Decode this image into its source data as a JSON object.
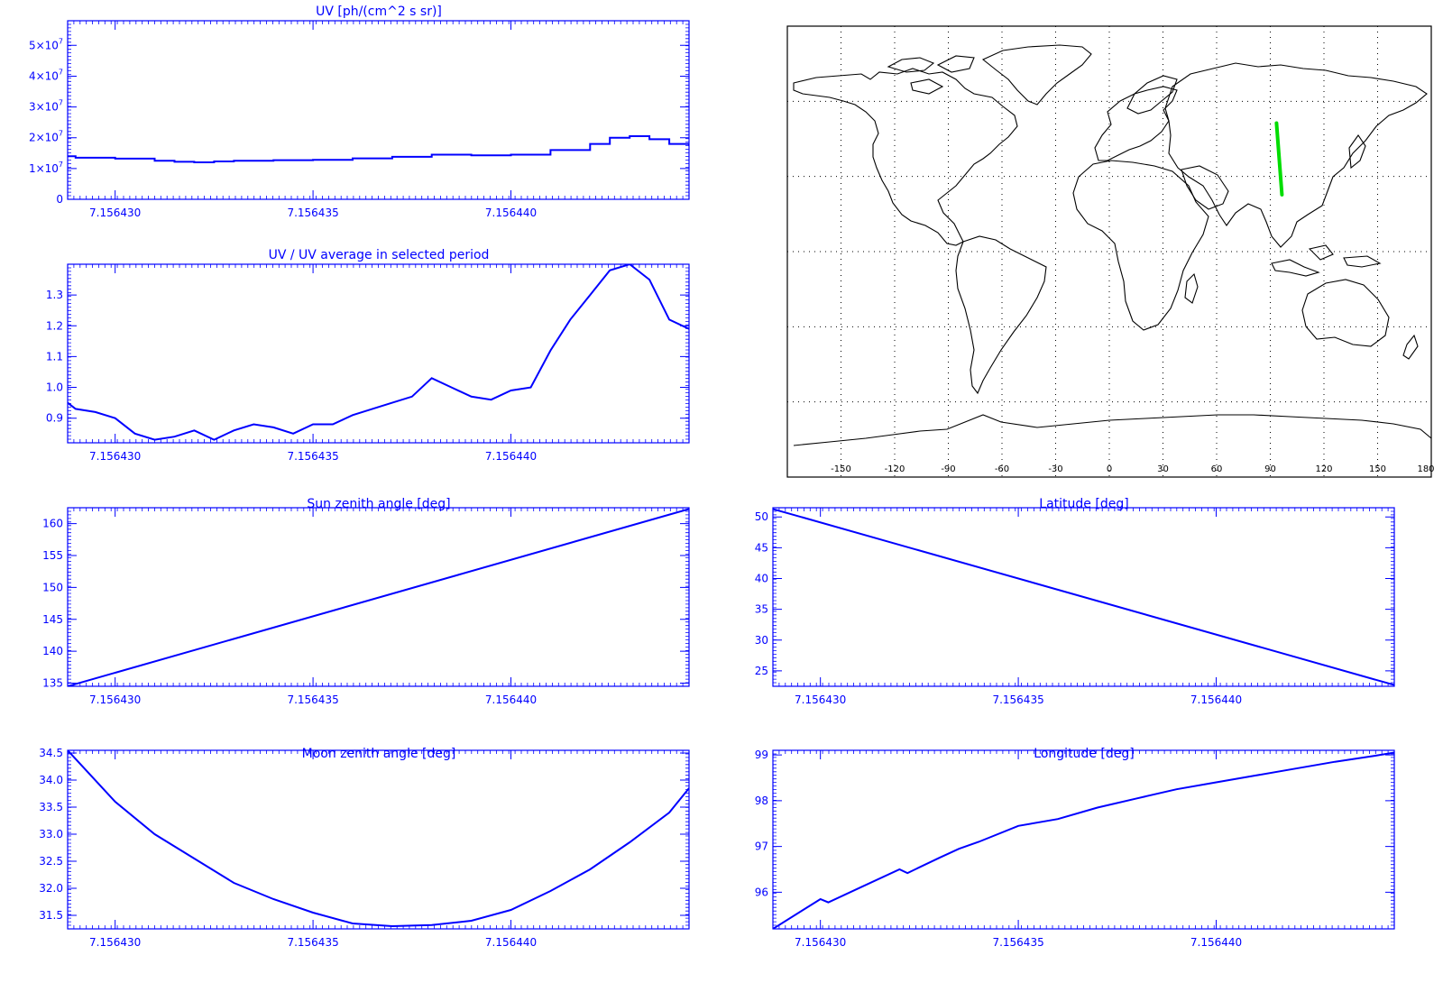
{
  "colors": {
    "axis": "#0000ff",
    "line": "#0000ff",
    "track": "#00dd00",
    "map": "#000000",
    "grid": "#000000"
  },
  "chart_data": [
    {
      "id": "uv",
      "type": "line",
      "line_style": "step",
      "title": "UV [ph/(cm^2 s sr)]",
      "xlabel": "",
      "ylabel": "",
      "xlim": [
        7.1564288,
        7.1564445
      ],
      "ylim": [
        0,
        58000000
      ],
      "xticks": [
        7.15643,
        7.156435,
        7.15644
      ],
      "xtick_labels": [
        "7.156430",
        "7.156435",
        "7.156440"
      ],
      "yticks": [
        0,
        10000000,
        20000000,
        30000000,
        40000000,
        50000000
      ],
      "ytick_labels": [
        {
          "base": "0",
          "exp": ""
        },
        {
          "base": "1×10",
          "exp": "7"
        },
        {
          "base": "2×10",
          "exp": "7"
        },
        {
          "base": "3×10",
          "exp": "7"
        },
        {
          "base": "4×10",
          "exp": "7"
        },
        {
          "base": "5×10",
          "exp": "7"
        }
      ],
      "series": [
        {
          "x": [
            7.1564288,
            7.156429,
            7.15643,
            7.156431,
            7.1564315,
            7.156432,
            7.1564325,
            7.156433,
            7.156434,
            7.156435,
            7.156436,
            7.156437,
            7.156438,
            7.156439,
            7.15644,
            7.156441,
            7.156442,
            7.1564425,
            7.156443,
            7.1564435,
            7.156444,
            7.1564445
          ],
          "y": [
            14000000,
            13500000,
            13200000,
            12500000,
            12200000,
            12000000,
            12300000,
            12500000,
            12700000,
            12800000,
            13300000,
            13800000,
            14500000,
            14300000,
            14500000,
            16000000,
            18000000,
            20000000,
            20500000,
            19500000,
            18000000,
            17500000
          ]
        }
      ]
    },
    {
      "id": "uv-ratio",
      "type": "line",
      "title": "UV / UV average in selected period",
      "xlabel": "",
      "ylabel": "",
      "xlim": [
        7.1564288,
        7.1564445
      ],
      "ylim": [
        0.82,
        1.4
      ],
      "xticks": [
        7.15643,
        7.156435,
        7.15644
      ],
      "xtick_labels": [
        "7.156430",
        "7.156435",
        "7.156440"
      ],
      "yticks": [
        0.9,
        1.0,
        1.1,
        1.2,
        1.3
      ],
      "ytick_labels": [
        "0.9",
        "1.0",
        "1.1",
        "1.2",
        "1.3"
      ],
      "series": [
        {
          "x": [
            7.1564288,
            7.156429,
            7.1564295,
            7.15643,
            7.1564305,
            7.156431,
            7.1564315,
            7.156432,
            7.1564325,
            7.156433,
            7.1564335,
            7.156434,
            7.1564345,
            7.156435,
            7.1564355,
            7.156436,
            7.1564365,
            7.156437,
            7.1564375,
            7.156438,
            7.1564385,
            7.156439,
            7.1564395,
            7.15644,
            7.1564405,
            7.156441,
            7.1564415,
            7.156442,
            7.1564425,
            7.156443,
            7.1564435,
            7.156444,
            7.1564445
          ],
          "y": [
            0.95,
            0.93,
            0.92,
            0.9,
            0.85,
            0.83,
            0.84,
            0.86,
            0.83,
            0.86,
            0.88,
            0.87,
            0.85,
            0.88,
            0.88,
            0.91,
            0.93,
            0.95,
            0.97,
            1.03,
            1.0,
            0.97,
            0.96,
            0.99,
            1.0,
            1.12,
            1.22,
            1.3,
            1.38,
            1.4,
            1.35,
            1.22,
            1.19
          ]
        }
      ]
    },
    {
      "id": "sun-zenith",
      "type": "line",
      "title": "Sun zenith angle [deg]",
      "xlabel": "",
      "ylabel": "",
      "xlim": [
        7.1564288,
        7.1564445
      ],
      "ylim": [
        134.5,
        162.5
      ],
      "xticks": [
        7.15643,
        7.156435,
        7.15644
      ],
      "xtick_labels": [
        "7.156430",
        "7.156435",
        "7.156440"
      ],
      "yticks": [
        135,
        140,
        145,
        150,
        155,
        160
      ],
      "ytick_labels": [
        "135",
        "140",
        "145",
        "150",
        "155",
        "160"
      ],
      "series": [
        {
          "x": [
            7.1564288,
            7.1564445
          ],
          "y": [
            134.5,
            162.3
          ]
        }
      ]
    },
    {
      "id": "latitude",
      "type": "line",
      "title": "Latitude [deg]",
      "xlabel": "",
      "ylabel": "",
      "xlim": [
        7.1564288,
        7.1564445
      ],
      "ylim": [
        22.5,
        51.5
      ],
      "xticks": [
        7.15643,
        7.156435,
        7.15644
      ],
      "xtick_labels": [
        "7.156430",
        "7.156435",
        "7.156440"
      ],
      "yticks": [
        25,
        30,
        35,
        40,
        45,
        50
      ],
      "ytick_labels": [
        "25",
        "30",
        "35",
        "40",
        "45",
        "50"
      ],
      "series": [
        {
          "x": [
            7.1564288,
            7.1564445
          ],
          "y": [
            51.3,
            22.7
          ]
        }
      ]
    },
    {
      "id": "moon-zenith",
      "type": "line",
      "title": "Moon zenith angle [deg]",
      "xlabel": "",
      "ylabel": "",
      "xlim": [
        7.1564288,
        7.1564445
      ],
      "ylim": [
        31.25,
        34.55
      ],
      "xticks": [
        7.15643,
        7.156435,
        7.15644
      ],
      "xtick_labels": [
        "7.156430",
        "7.156435",
        "7.156440"
      ],
      "yticks": [
        31.5,
        32.0,
        32.5,
        33.0,
        33.5,
        34.0,
        34.5
      ],
      "ytick_labels": [
        "31.5",
        "32.0",
        "32.5",
        "33.0",
        "33.5",
        "34.0",
        "34.5"
      ],
      "series": [
        {
          "x": [
            7.1564288,
            7.15643,
            7.156431,
            7.156432,
            7.156433,
            7.156434,
            7.156435,
            7.156436,
            7.156437,
            7.156438,
            7.156439,
            7.15644,
            7.156441,
            7.156442,
            7.156443,
            7.156444,
            7.1564445
          ],
          "y": [
            34.55,
            33.6,
            33.0,
            32.55,
            32.1,
            31.8,
            31.55,
            31.35,
            31.3,
            31.32,
            31.4,
            31.6,
            31.95,
            32.35,
            32.85,
            33.4,
            33.85
          ]
        }
      ]
    },
    {
      "id": "longitude",
      "type": "line",
      "title": "Longitude [deg]",
      "xlabel": "",
      "ylabel": "",
      "xlim": [
        7.1564288,
        7.1564445
      ],
      "ylim": [
        95.2,
        99.1
      ],
      "xticks": [
        7.15643,
        7.156435,
        7.15644
      ],
      "xtick_labels": [
        "7.156430",
        "7.156435",
        "7.156440"
      ],
      "yticks": [
        96,
        97,
        98,
        99
      ],
      "ytick_labels": [
        "96",
        "97",
        "98",
        "99"
      ],
      "series": [
        {
          "x": [
            7.1564288,
            7.15643,
            7.1564302,
            7.156431,
            7.156432,
            7.1564322,
            7.156433,
            7.1564335,
            7.156434,
            7.156435,
            7.156436,
            7.156437,
            7.156438,
            7.156439,
            7.15644,
            7.156441,
            7.156442,
            7.156443,
            7.156444,
            7.1564445
          ],
          "y": [
            95.2,
            95.85,
            95.78,
            96.1,
            96.5,
            96.42,
            96.75,
            96.95,
            97.1,
            97.45,
            97.6,
            97.85,
            98.05,
            98.25,
            98.4,
            98.55,
            98.7,
            98.85,
            98.98,
            99.05
          ]
        }
      ]
    }
  ],
  "map": {
    "xtick_labels": [
      "-150",
      "-120",
      "-90",
      "-60",
      "-30",
      "0",
      "30",
      "60",
      "90",
      "120",
      "150",
      "180"
    ],
    "xticks": [
      -150,
      -120,
      -90,
      -60,
      -30,
      0,
      30,
      60,
      90,
      120,
      150,
      180
    ],
    "track": {
      "lon": [
        93.5,
        96.5
      ],
      "lat": [
        51.3,
        22.7
      ]
    }
  }
}
